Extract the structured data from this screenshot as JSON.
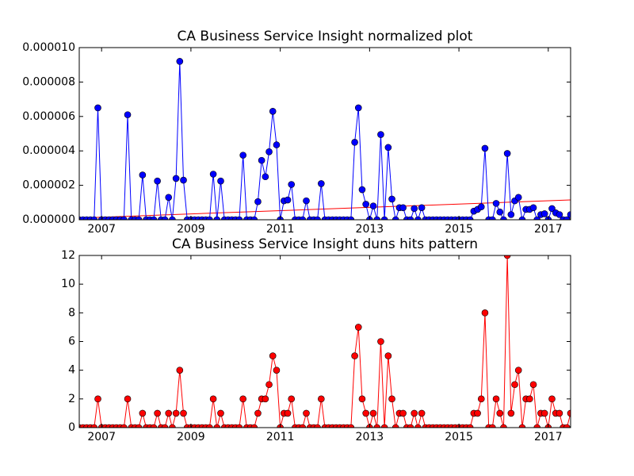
{
  "chart_data": [
    {
      "type": "line",
      "title": "CA Business Service Insight normalized plot",
      "x": [
        2006.5,
        2006.583,
        2006.667,
        2006.75,
        2006.833,
        2006.917,
        2007,
        2007.083,
        2007.167,
        2007.25,
        2007.333,
        2007.417,
        2007.5,
        2007.583,
        2007.667,
        2007.75,
        2007.833,
        2007.917,
        2008,
        2008.083,
        2008.167,
        2008.25,
        2008.333,
        2008.417,
        2008.5,
        2008.583,
        2008.667,
        2008.75,
        2008.833,
        2008.917,
        2009,
        2009.083,
        2009.167,
        2009.25,
        2009.333,
        2009.417,
        2009.5,
        2009.583,
        2009.667,
        2009.75,
        2009.833,
        2009.917,
        2010,
        2010.083,
        2010.167,
        2010.25,
        2010.333,
        2010.417,
        2010.5,
        2010.583,
        2010.667,
        2010.75,
        2010.833,
        2010.917,
        2011,
        2011.083,
        2011.167,
        2011.25,
        2011.333,
        2011.417,
        2011.5,
        2011.583,
        2011.667,
        2011.75,
        2011.833,
        2011.917,
        2012,
        2012.083,
        2012.167,
        2012.25,
        2012.333,
        2012.417,
        2012.5,
        2012.583,
        2012.667,
        2012.75,
        2012.833,
        2012.917,
        2013,
        2013.083,
        2013.167,
        2013.25,
        2013.333,
        2013.417,
        2013.5,
        2013.583,
        2013.667,
        2013.75,
        2013.833,
        2013.917,
        2014,
        2014.083,
        2014.167,
        2014.25,
        2014.333,
        2014.417,
        2014.5,
        2014.583,
        2014.667,
        2014.75,
        2014.833,
        2014.917,
        2015,
        2015.083,
        2015.167,
        2015.25,
        2015.333,
        2015.417,
        2015.5,
        2015.583,
        2015.667,
        2015.75,
        2015.833,
        2015.917,
        2016,
        2016.083,
        2016.167,
        2016.25,
        2016.333,
        2016.417,
        2016.5,
        2016.583,
        2016.667,
        2016.75,
        2016.833,
        2016.917,
        2017,
        2017.083,
        2017.167,
        2017.25,
        2017.333,
        2017.417,
        2017.5
      ],
      "series": [
        {
          "color": "#0000ff",
          "values": [
            0,
            0,
            0,
            0,
            0,
            6.5e-06,
            0,
            0,
            0,
            0,
            0,
            0,
            0,
            6.1e-06,
            0,
            0,
            0,
            2.6e-06,
            0,
            0,
            0,
            2.25e-06,
            0,
            0,
            1.3e-06,
            0,
            2.4e-06,
            9.2e-06,
            2.3e-06,
            0,
            0,
            0,
            0,
            0,
            0,
            0,
            2.65e-06,
            0,
            2.25e-06,
            0,
            0,
            0,
            0,
            0,
            3.75e-06,
            0,
            0,
            0,
            1.05e-06,
            3.45e-06,
            2.5e-06,
            3.95e-06,
            6.3e-06,
            4.35e-06,
            0,
            1.1e-06,
            1.15e-06,
            2.05e-06,
            0,
            0,
            0,
            1.1e-06,
            0,
            0,
            0,
            2.1e-06,
            0,
            0,
            0,
            0,
            0,
            0,
            0,
            0,
            4.5e-06,
            6.5e-06,
            1.75e-06,
            9e-07,
            0,
            8e-07,
            0,
            4.95e-06,
            0,
            4.2e-06,
            1.2e-06,
            0,
            7e-07,
            7e-07,
            0,
            0,
            6.5e-07,
            0,
            7e-07,
            0,
            0,
            0,
            0,
            0,
            0,
            0,
            0,
            0,
            0,
            0,
            0,
            0,
            5e-07,
            6e-07,
            7.5e-07,
            4.15e-06,
            0,
            0,
            9.5e-07,
            4.5e-07,
            0,
            3.85e-06,
            3e-07,
            1.1e-06,
            1.3e-06,
            0,
            6e-07,
            6e-07,
            7e-07,
            0,
            3e-07,
            3.5e-07,
            0,
            6.5e-07,
            4e-07,
            3e-07,
            0,
            0,
            3e-07
          ]
        }
      ],
      "trend": {
        "x": [
          2006.5,
          2017.5
        ],
        "values": [
          1e-07,
          1.15e-06
        ],
        "color": "#ff0000"
      },
      "xlim": [
        2006.5,
        2017.5
      ],
      "xticks": [
        2007,
        2009,
        2011,
        2013,
        2015,
        2017
      ],
      "ylim": [
        0,
        1e-05
      ],
      "yticks": [
        {
          "value": 0,
          "label": "0.000000"
        },
        {
          "value": 2e-06,
          "label": "0.000002"
        },
        {
          "value": 4e-06,
          "label": "0.000004"
        },
        {
          "value": 6e-06,
          "label": "0.000006"
        },
        {
          "value": 8e-06,
          "label": "0.000008"
        },
        {
          "value": 1e-05,
          "label": "0.000010"
        }
      ]
    },
    {
      "type": "line",
      "title": "CA Business Service Insight duns hits pattern",
      "x": [
        2006.5,
        2006.583,
        2006.667,
        2006.75,
        2006.833,
        2006.917,
        2007,
        2007.083,
        2007.167,
        2007.25,
        2007.333,
        2007.417,
        2007.5,
        2007.583,
        2007.667,
        2007.75,
        2007.833,
        2007.917,
        2008,
        2008.083,
        2008.167,
        2008.25,
        2008.333,
        2008.417,
        2008.5,
        2008.583,
        2008.667,
        2008.75,
        2008.833,
        2008.917,
        2009,
        2009.083,
        2009.167,
        2009.25,
        2009.333,
        2009.417,
        2009.5,
        2009.583,
        2009.667,
        2009.75,
        2009.833,
        2009.917,
        2010,
        2010.083,
        2010.167,
        2010.25,
        2010.333,
        2010.417,
        2010.5,
        2010.583,
        2010.667,
        2010.75,
        2010.833,
        2010.917,
        2011,
        2011.083,
        2011.167,
        2011.25,
        2011.333,
        2011.417,
        2011.5,
        2011.583,
        2011.667,
        2011.75,
        2011.833,
        2011.917,
        2012,
        2012.083,
        2012.167,
        2012.25,
        2012.333,
        2012.417,
        2012.5,
        2012.583,
        2012.667,
        2012.75,
        2012.833,
        2012.917,
        2013,
        2013.083,
        2013.167,
        2013.25,
        2013.333,
        2013.417,
        2013.5,
        2013.583,
        2013.667,
        2013.75,
        2013.833,
        2013.917,
        2014,
        2014.083,
        2014.167,
        2014.25,
        2014.333,
        2014.417,
        2014.5,
        2014.583,
        2014.667,
        2014.75,
        2014.833,
        2014.917,
        2015,
        2015.083,
        2015.167,
        2015.25,
        2015.333,
        2015.417,
        2015.5,
        2015.583,
        2015.667,
        2015.75,
        2015.833,
        2015.917,
        2016,
        2016.083,
        2016.167,
        2016.25,
        2016.333,
        2016.417,
        2016.5,
        2016.583,
        2016.667,
        2016.75,
        2016.833,
        2016.917,
        2017,
        2017.083,
        2017.167,
        2017.25,
        2017.333,
        2017.417,
        2017.5
      ],
      "series": [
        {
          "color": "#ff0000",
          "values": [
            0,
            0,
            0,
            0,
            0,
            2,
            0,
            0,
            0,
            0,
            0,
            0,
            0,
            2,
            0,
            0,
            0,
            1,
            0,
            0,
            0,
            1,
            0,
            0,
            1,
            0,
            1,
            4,
            1,
            0,
            0,
            0,
            0,
            0,
            0,
            0,
            2,
            0,
            1,
            0,
            0,
            0,
            0,
            0,
            2,
            0,
            0,
            0,
            1,
            2,
            2,
            3,
            5,
            4,
            0,
            1,
            1,
            2,
            0,
            0,
            0,
            1,
            0,
            0,
            0,
            2,
            0,
            0,
            0,
            0,
            0,
            0,
            0,
            0,
            5,
            7,
            2,
            1,
            0,
            1,
            0,
            6,
            0,
            5,
            2,
            0,
            1,
            1,
            0,
            0,
            1,
            0,
            1,
            0,
            0,
            0,
            0,
            0,
            0,
            0,
            0,
            0,
            0,
            0,
            0,
            0,
            1,
            1,
            2,
            8,
            0,
            0,
            2,
            1,
            0,
            12,
            1,
            3,
            4,
            0,
            2,
            2,
            3,
            0,
            1,
            1,
            0,
            2,
            1,
            1,
            0,
            0,
            1
          ]
        }
      ],
      "xlim": [
        2006.5,
        2017.5
      ],
      "xticks": [
        2007,
        2009,
        2011,
        2013,
        2015,
        2017
      ],
      "ylim": [
        0,
        12
      ],
      "yticks": [
        0,
        2,
        4,
        6,
        8,
        10,
        12
      ]
    }
  ]
}
